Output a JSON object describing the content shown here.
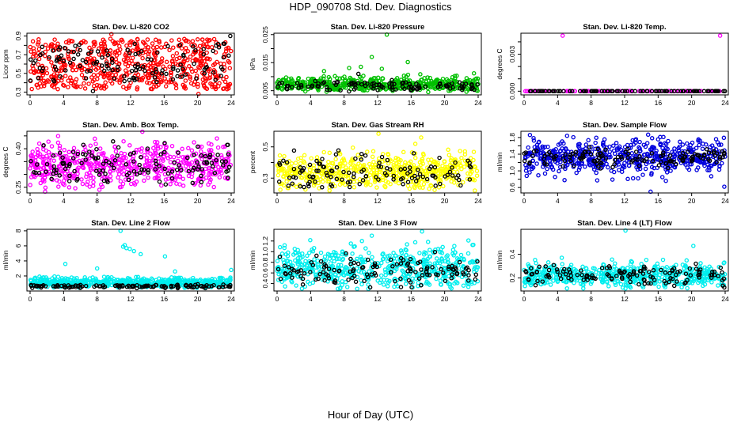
{
  "figure": {
    "title": "HDP_090708  Std. Dev. Diagnostics",
    "xlabel": "Hour of Day (UTC)"
  },
  "chart_data": [
    {
      "type": "scatter",
      "title": "Stan. Dev. Li-820 CO2",
      "ylabel": "Licor ppm",
      "xlim": [
        0,
        24
      ],
      "xticks": [
        0,
        4,
        8,
        12,
        16,
        20,
        24
      ],
      "ylim": [
        0.27,
        0.93
      ],
      "yticks": [
        0.3,
        0.4,
        0.5,
        0.6,
        0.7,
        0.8,
        0.9
      ],
      "ytick_labels": [
        "0.3",
        "",
        "0.5",
        "",
        "0.7",
        "",
        "0.9"
      ],
      "color": "#ff0000",
      "series": [
        {
          "color": "#ff0000",
          "dist": "uniform",
          "n": 600,
          "lo": 0.33,
          "hi": 0.87,
          "seed": 11,
          "values": [
            [
              1.0,
              0.83
            ],
            [
              9.7,
              0.92
            ],
            [
              20.1,
              0.28
            ],
            [
              18.9,
              0.84
            ],
            [
              21.3,
              0.85
            ]
          ]
        },
        {
          "color": "#000000",
          "dist": "uniform",
          "n": 130,
          "lo": 0.4,
          "hi": 0.82,
          "seed": 12,
          "values": [
            [
              23.9,
              0.9
            ],
            [
              7.5,
              0.31
            ]
          ]
        }
      ]
    },
    {
      "type": "scatter",
      "title": "Stan. Dev. Li-820 Pressure",
      "ylabel": "kPa",
      "xlim": [
        0,
        24
      ],
      "xticks": [
        0,
        4,
        8,
        12,
        16,
        20,
        24
      ],
      "ylim": [
        0.0035,
        0.0255
      ],
      "yticks": [
        0.005,
        0.01,
        0.015,
        0.02,
        0.025
      ],
      "ytick_labels": [
        "0.005",
        "",
        "0.015",
        "",
        "0.025"
      ],
      "color": "#00c000",
      "series": [
        {
          "color": "#00c000",
          "dist": "normal",
          "n": 520,
          "mid": 0.0072,
          "sd": 0.0013,
          "lo": 0.0045,
          "hi": 0.012,
          "seed": 21,
          "values": [
            [
              13.1,
              0.025
            ],
            [
              11.3,
              0.017
            ],
            [
              15.6,
              0.0152
            ],
            [
              10.0,
              0.0135
            ],
            [
              12.5,
              0.0128
            ],
            [
              8.6,
              0.0131
            ],
            [
              23.5,
              0.0112
            ],
            [
              5.6,
              0.012
            ]
          ]
        },
        {
          "color": "#000000",
          "dist": "normal",
          "n": 110,
          "mid": 0.0066,
          "sd": 0.0009,
          "lo": 0.0045,
          "hi": 0.01,
          "seed": 22,
          "values": [
            [
              9.7,
              0.011
            ]
          ]
        }
      ]
    },
    {
      "type": "scatter",
      "title": "Stan. Dev. Li-820 Temp.",
      "ylabel": "degrees C",
      "xlim": [
        0,
        24
      ],
      "xticks": [
        0,
        4,
        8,
        12,
        16,
        20,
        24
      ],
      "ylim": [
        -0.0003,
        0.0047
      ],
      "yticks": [
        0.0,
        0.001,
        0.002,
        0.003,
        0.004
      ],
      "ytick_labels": [
        "0.000",
        "",
        "",
        "0.003",
        ""
      ],
      "color": "#ff00ff",
      "series": [
        {
          "color": "#ff00ff",
          "dist": "const",
          "n": 120,
          "value": 0.0,
          "seed": 31,
          "values": [
            [
              4.6,
              0.0045
            ],
            [
              23.4,
              0.0045
            ]
          ]
        },
        {
          "color": "#000000",
          "dist": "const",
          "n": 90,
          "value": 0.0,
          "seed": 32,
          "values": []
        }
      ]
    },
    {
      "type": "scatter",
      "title": "Stan. Dev. Amb. Box Temp.",
      "ylabel": "degrees C",
      "xlim": [
        0,
        24
      ],
      "xticks": [
        0,
        4,
        8,
        12,
        16,
        20,
        24
      ],
      "ylim": [
        0.228,
        0.468
      ],
      "yticks": [
        0.25,
        0.3,
        0.35,
        0.4,
        0.45
      ],
      "ytick_labels": [
        "0.25",
        "",
        "",
        "0.40",
        ""
      ],
      "color": "#ff00ff",
      "series": [
        {
          "color": "#ff00ff",
          "dist": "normal",
          "n": 560,
          "mid": 0.335,
          "sd": 0.045,
          "lo": 0.24,
          "hi": 0.45,
          "seed": 41,
          "values": [
            [
              13.4,
              0.466
            ],
            [
              1.8,
              0.233
            ],
            [
              22.3,
              0.44
            ],
            [
              1.1,
              0.42
            ]
          ]
        },
        {
          "color": "#000000",
          "dist": "normal",
          "n": 130,
          "mid": 0.335,
          "sd": 0.04,
          "lo": 0.26,
          "hi": 0.43,
          "seed": 42,
          "values": [
            [
              23.6,
              0.415
            ]
          ]
        }
      ]
    },
    {
      "type": "scatter",
      "title": "Stan. Dev. Gas Stream RH",
      "ylabel": "percent",
      "xlim": [
        0,
        24
      ],
      "xticks": [
        0,
        4,
        8,
        12,
        16,
        20,
        24
      ],
      "ylim": [
        0.205,
        0.6
      ],
      "yticks": [
        0.3,
        0.4,
        0.5
      ],
      "ytick_labels": [
        "0.3",
        "",
        "0.5"
      ],
      "color": "#ffff00",
      "series": [
        {
          "color": "#ffff00",
          "dist": "normal",
          "n": 540,
          "mid": 0.34,
          "sd": 0.055,
          "lo": 0.22,
          "hi": 0.52,
          "seed": 51,
          "values": [
            [
              12.1,
              0.585
            ],
            [
              23.6,
              0.22
            ],
            [
              17.2,
              0.56
            ]
          ]
        },
        {
          "color": "#000000",
          "dist": "normal",
          "n": 120,
          "mid": 0.34,
          "sd": 0.05,
          "lo": 0.24,
          "hi": 0.48,
          "seed": 52,
          "values": []
        }
      ]
    },
    {
      "type": "scatter",
      "title": "Stan. Dev. Sample Flow",
      "ylabel": "ml/min",
      "xlim": [
        0,
        24
      ],
      "xticks": [
        0,
        4,
        8,
        12,
        16,
        20,
        24
      ],
      "ylim": [
        0.47,
        1.95
      ],
      "yticks": [
        0.6,
        0.8,
        1.0,
        1.2,
        1.4,
        1.6,
        1.8
      ],
      "ytick_labels": [
        "0.6",
        "",
        "1.0",
        "",
        "1.4",
        "",
        "1.8"
      ],
      "color": "#0000dd",
      "series": [
        {
          "color": "#0000dd",
          "dist": "normal",
          "n": 560,
          "mid": 1.32,
          "sd": 0.22,
          "lo": 0.55,
          "hi": 1.9,
          "seed": 61,
          "values": [
            [
              15.1,
              0.5
            ],
            [
              0.7,
              1.86
            ],
            [
              23.9,
              0.62
            ]
          ]
        },
        {
          "color": "#000000",
          "dist": "normal",
          "n": 130,
          "mid": 1.3,
          "sd": 0.12,
          "lo": 1.0,
          "hi": 1.6,
          "seed": 62,
          "values": []
        }
      ]
    },
    {
      "type": "scatter",
      "title": "Stan. Dev. Line 2 Flow",
      "ylabel": "ml/min",
      "xlim": [
        0,
        24
      ],
      "xticks": [
        0,
        4,
        8,
        12,
        16,
        20,
        24
      ],
      "ylim": [
        0.0,
        8.2
      ],
      "yticks": [
        2,
        4,
        6,
        8
      ],
      "ytick_labels": [
        "2",
        "4",
        "6",
        "8"
      ],
      "color": "#00eeee",
      "series": [
        {
          "color": "#00eeee",
          "dist": "normal",
          "n": 560,
          "mid": 1.1,
          "sd": 0.35,
          "lo": 0.4,
          "hi": 2.3,
          "seed": 71,
          "values": [
            [
              10.8,
              8.0
            ],
            [
              11.1,
              5.9
            ],
            [
              11.5,
              5.7
            ],
            [
              11.9,
              5.6
            ],
            [
              11.3,
              6.1
            ],
            [
              12.4,
              5.3
            ],
            [
              13.2,
              4.9
            ],
            [
              16.1,
              4.6
            ],
            [
              4.2,
              3.6
            ],
            [
              8.0,
              3.0
            ],
            [
              24.0,
              2.8
            ],
            [
              17.3,
              2.6
            ]
          ]
        },
        {
          "color": "#000000",
          "dist": "normal",
          "n": 130,
          "mid": 0.62,
          "sd": 0.12,
          "lo": 0.35,
          "hi": 0.95,
          "seed": 72,
          "values": []
        }
      ]
    },
    {
      "type": "scatter",
      "title": "Stan. Dev. Line 3 Flow",
      "ylabel": "ml/min",
      "xlim": [
        0,
        24
      ],
      "xticks": [
        0,
        4,
        8,
        12,
        16,
        20,
        24
      ],
      "ylim": [
        0.26,
        1.42
      ],
      "yticks": [
        0.4,
        0.6,
        0.8,
        1.0,
        1.2
      ],
      "ytick_labels": [
        "0.4",
        "0.6",
        "0.8",
        "1.0",
        "1.2"
      ],
      "color": "#00eeee",
      "series": [
        {
          "color": "#00eeee",
          "dist": "normal",
          "n": 560,
          "mid": 0.68,
          "sd": 0.2,
          "lo": 0.3,
          "hi": 1.25,
          "seed": 81,
          "values": [
            [
              17.3,
              1.38
            ],
            [
              11.3,
              1.3
            ],
            [
              0.9,
              1.12
            ]
          ]
        },
        {
          "color": "#000000",
          "dist": "normal",
          "n": 130,
          "mid": 0.62,
          "sd": 0.15,
          "lo": 0.32,
          "hi": 1.05,
          "seed": 82,
          "values": []
        }
      ]
    },
    {
      "type": "scatter",
      "title": "Stan. Dev. Line 4 (LT) Flow",
      "ylabel": "ml/min",
      "xlim": [
        0,
        24
      ],
      "xticks": [
        0,
        4,
        8,
        12,
        16,
        20,
        24
      ],
      "ylim": [
        0.09,
        0.61
      ],
      "yticks": [
        0.2,
        0.4
      ],
      "ytick_labels": [
        "0.2",
        "0.4"
      ],
      "color": "#00eeee",
      "series": [
        {
          "color": "#00eeee",
          "dist": "normal",
          "n": 560,
          "mid": 0.22,
          "sd": 0.05,
          "lo": 0.11,
          "hi": 0.36,
          "seed": 91,
          "values": [
            [
              12.1,
              0.6
            ],
            [
              20.2,
              0.47
            ],
            [
              4.5,
              0.37
            ]
          ]
        },
        {
          "color": "#000000",
          "dist": "normal",
          "n": 130,
          "mid": 0.22,
          "sd": 0.045,
          "lo": 0.12,
          "hi": 0.33,
          "seed": 92,
          "values": [
            [
              20.5,
              0.32
            ],
            [
              23.9,
              0.12
            ]
          ]
        }
      ]
    }
  ]
}
